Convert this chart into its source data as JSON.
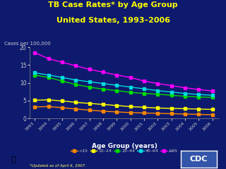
{
  "title_line1": "TB Case Rates* by Age Group",
  "title_line2": "United States, 1993–2006",
  "ylabel": "Cases per 100,000",
  "xlabel": "Age Group (years)",
  "footnote": "*Updated as of April 6, 2007.",
  "years": [
    1993,
    1994,
    1995,
    1996,
    1997,
    1998,
    1999,
    2000,
    2001,
    2002,
    2003,
    2004,
    2005,
    2006
  ],
  "series_order": [
    "<15",
    "15–24",
    "25–44",
    "45–64",
    "≥65"
  ],
  "series": {
    "<15": [
      3.2,
      3.3,
      3.0,
      2.6,
      2.3,
      2.0,
      1.8,
      1.6,
      1.5,
      1.4,
      1.3,
      1.2,
      1.1,
      1.0
    ],
    "15–24": [
      5.1,
      5.2,
      4.9,
      4.5,
      4.2,
      3.9,
      3.6,
      3.3,
      3.1,
      2.9,
      2.8,
      2.7,
      2.6,
      2.5
    ],
    "25–44": [
      12.2,
      11.5,
      10.5,
      9.5,
      8.8,
      8.2,
      7.8,
      7.3,
      7.0,
      6.8,
      6.5,
      6.2,
      6.0,
      5.9
    ],
    "45–64": [
      12.8,
      12.2,
      11.5,
      10.8,
      10.3,
      9.8,
      9.3,
      8.8,
      8.3,
      7.8,
      7.4,
      7.0,
      6.7,
      6.5
    ],
    "≥65": [
      18.5,
      16.8,
      15.8,
      14.8,
      13.8,
      13.0,
      12.2,
      11.5,
      10.5,
      9.8,
      9.2,
      8.6,
      8.1,
      7.7
    ]
  },
  "colors": {
    "<15": "#FF8800",
    "15–24": "#FFFF00",
    "25–44": "#00DD00",
    "45–64": "#00DDDD",
    "≥65": "#FF00FF"
  },
  "background_color": "#0e1a6e",
  "title_color": "#FFFF00",
  "tick_label_color": "#CCCCCC",
  "ylabel_color": "#CCCCCC",
  "xlabel_color": "#FFFFFF",
  "footnote_color": "#FFFF66",
  "ylim": [
    0,
    20
  ],
  "yticks": [
    0,
    5,
    10,
    15,
    20
  ]
}
